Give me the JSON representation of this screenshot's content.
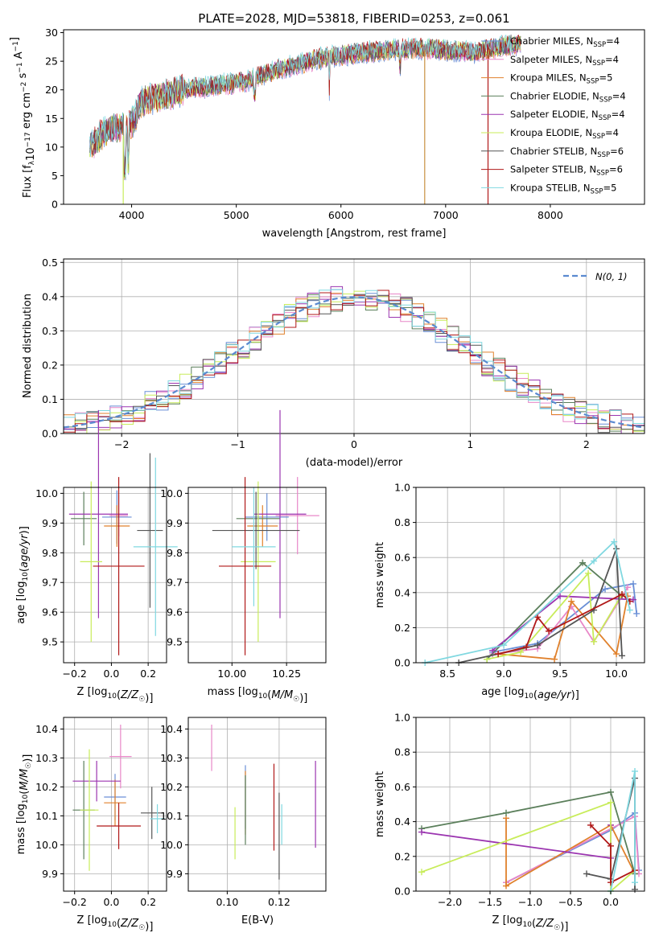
{
  "colors": [
    "#6a8fd6",
    "#e887c8",
    "#e0812c",
    "#5b7f5b",
    "#9b35b0",
    "#c8ec5a",
    "#555555",
    "#b01818",
    "#80d8e0"
  ],
  "legend_series": [
    {
      "label": "Chabrier MILES, N",
      "sub": "SSP",
      "suffix": "=4",
      "color": "#6a8fd6"
    },
    {
      "label": "Salpeter MILES, N",
      "sub": "SSP",
      "suffix": "=4",
      "color": "#e887c8"
    },
    {
      "label": "Kroupa MILES, N",
      "sub": "SSP",
      "suffix": "=5",
      "color": "#e0812c"
    },
    {
      "label": "Chabrier ELODIE, N",
      "sub": "SSP",
      "suffix": "=4",
      "color": "#5b7f5b"
    },
    {
      "label": "Salpeter ELODIE, N",
      "sub": "SSP",
      "suffix": "=4",
      "color": "#9b35b0"
    },
    {
      "label": "Kroupa ELODIE, N",
      "sub": "SSP",
      "suffix": "=4",
      "color": "#c8ec5a"
    },
    {
      "label": "Chabrier STELIB, N",
      "sub": "SSP",
      "suffix": "=6",
      "color": "#555555"
    },
    {
      "label": "Salpeter STELIB, N",
      "sub": "SSP",
      "suffix": "=6",
      "color": "#b01818"
    },
    {
      "label": "Kroupa STELIB, N",
      "sub": "SSP",
      "suffix": "=5",
      "color": "#80d8e0"
    }
  ],
  "chart_data": [
    {
      "id": "spectrum",
      "type": "line",
      "title": "PLATE=2028, MJD=53818, FIBERID=0253, z=0.061",
      "xlabel": "wavelength [Angstrom, rest frame]",
      "ylabel_parts": [
        "Flux [f",
        "λ",
        "10",
        "−17",
        " erg cm",
        "−2",
        " s",
        "−1",
        " A",
        "−1",
        "]"
      ],
      "xlim": [
        3350,
        8900
      ],
      "ylim": [
        0,
        30.5
      ],
      "xticks": [
        4000,
        5000,
        6000,
        7000,
        8000
      ],
      "yticks": [
        0,
        5,
        10,
        15,
        20,
        25,
        30
      ],
      "continuum": [
        [
          3600,
          10
        ],
        [
          3700,
          12
        ],
        [
          3800,
          13
        ],
        [
          3900,
          13.5
        ],
        [
          4000,
          14
        ],
        [
          4100,
          18
        ],
        [
          4300,
          19
        ],
        [
          4500,
          20
        ],
        [
          4700,
          20.5
        ],
        [
          4900,
          21
        ],
        [
          5100,
          21.5
        ],
        [
          5300,
          23
        ],
        [
          5500,
          24
        ],
        [
          5800,
          25.5
        ],
        [
          6000,
          26
        ],
        [
          6200,
          26.5
        ],
        [
          6500,
          27
        ],
        [
          6800,
          27.2
        ],
        [
          7000,
          27
        ],
        [
          7300,
          26.5
        ],
        [
          7500,
          27.5
        ],
        [
          7700,
          28
        ]
      ]
    },
    {
      "id": "residuals",
      "type": "line",
      "xlabel": "(data-model)/error",
      "ylabel": "Normed distribution",
      "xlim": [
        -2.5,
        2.5
      ],
      "ylim": [
        0,
        0.51
      ],
      "xticks": [
        -2,
        -1,
        0,
        1,
        2
      ],
      "yticks": [
        0,
        0.1,
        0.2,
        0.3,
        0.4,
        0.5
      ],
      "legend": "N(0, 1)",
      "bin_width": 0.1
    },
    {
      "id": "age_vs_Z",
      "type": "errorbar",
      "xlabel": "Z [log10(Z/Z☉)]",
      "ylabel": "age  [log10(age/yr)]",
      "xlim": [
        -0.26,
        0.3
      ],
      "ylim": [
        9.43,
        10.02
      ],
      "xticks": [
        -0.2,
        0.0,
        0.2
      ],
      "yticks": [
        9.5,
        9.6,
        9.7,
        9.8,
        9.9,
        10.0
      ],
      "points": [
        {
          "x": 0.03,
          "xerr": 0.08,
          "y": 9.92,
          "yerr": 0.09
        },
        {
          "x": 0.04,
          "xerr": 0.05,
          "y": 9.925,
          "yerr": 0.07
        },
        {
          "x": 0.03,
          "xerr": 0.07,
          "y": 9.89,
          "yerr": 0.07
        },
        {
          "x": -0.15,
          "xerr": 0.07,
          "y": 9.915,
          "yerr": 0.09
        },
        {
          "x": -0.07,
          "xerr": 0.16,
          "y": 9.93,
          "yerr": 0.35
        },
        {
          "x": -0.11,
          "xerr": 0.06,
          "y": 9.77,
          "yerr": 0.27
        },
        {
          "x": 0.21,
          "xerr": 0.07,
          "y": 9.875,
          "yerr": 0.26
        },
        {
          "x": 0.04,
          "xerr": 0.14,
          "y": 9.755,
          "yerr": 0.3
        },
        {
          "x": 0.24,
          "xerr": 0.12,
          "y": 9.82,
          "yerr": 0.3
        }
      ]
    },
    {
      "id": "age_vs_mass",
      "type": "errorbar",
      "xlabel": "mass [log10(M/M☉)]",
      "ylabel": "",
      "xlim": [
        9.8,
        10.43
      ],
      "ylim": [
        9.43,
        10.02
      ],
      "xticks": [
        10.0,
        10.25
      ],
      "yticks": [
        9.5,
        9.6,
        9.7,
        9.8,
        9.9,
        10.0
      ],
      "points": [
        {
          "x": 10.16,
          "xerr": 0.1,
          "y": 9.92,
          "yerr": 0.08
        },
        {
          "x": 10.3,
          "xerr": 0.1,
          "y": 9.925,
          "yerr": 0.13
        },
        {
          "x": 10.14,
          "xerr": 0.07,
          "y": 9.89,
          "yerr": 0.07
        },
        {
          "x": 10.12,
          "xerr": 0.1,
          "y": 9.915,
          "yerr": 0.09
        },
        {
          "x": 10.22,
          "xerr": 0.12,
          "y": 9.93,
          "yerr": 0.35
        },
        {
          "x": 10.12,
          "xerr": 0.08,
          "y": 9.77,
          "yerr": 0.27
        },
        {
          "x": 10.11,
          "xerr": 0.2,
          "y": 9.875,
          "yerr": 0.13
        },
        {
          "x": 10.06,
          "xerr": 0.12,
          "y": 9.755,
          "yerr": 0.3
        },
        {
          "x": 10.1,
          "xerr": 0.1,
          "y": 9.82,
          "yerr": 0.2
        }
      ]
    },
    {
      "id": "weight_vs_age",
      "type": "line",
      "xlabel": "age  [log10(age/yr)]",
      "ylabel": "mass weight",
      "xlim": [
        8.22,
        10.25
      ],
      "ylim": [
        0,
        1
      ],
      "xticks": [
        8.5,
        9.0,
        9.5,
        10.0
      ],
      "yticks": [
        0,
        0.2,
        0.4,
        0.6,
        0.8,
        1.0
      ],
      "series": [
        {
          "x": [
            8.9,
            9.3,
            9.9,
            10.15,
            10.18
          ],
          "y": [
            0.06,
            0.11,
            0.42,
            0.45,
            0.28
          ]
        },
        {
          "x": [
            8.9,
            9.3,
            9.6,
            9.8,
            10.1
          ],
          "y": [
            0.05,
            0.08,
            0.32,
            0.12,
            0.43
          ]
        },
        {
          "x": [
            8.95,
            9.45,
            9.6,
            10.0,
            10.1
          ],
          "y": [
            0.05,
            0.02,
            0.35,
            0.05,
            0.38
          ]
        },
        {
          "x": [
            8.85,
            9.7,
            10.05
          ],
          "y": [
            0.02,
            0.57,
            0.38
          ]
        },
        {
          "x": [
            8.9,
            9.5,
            10.15
          ],
          "y": [
            0.07,
            0.38,
            0.36
          ]
        },
        {
          "x": [
            8.85,
            9.15,
            9.75,
            9.8,
            10.05
          ],
          "y": [
            0.02,
            0.06,
            0.51,
            0.12,
            0.39
          ]
        },
        {
          "x": [
            8.6,
            9.3,
            9.8,
            10.0,
            10.05
          ],
          "y": [
            0.0,
            0.1,
            0.3,
            0.65,
            0.04
          ]
        },
        {
          "x": [
            8.95,
            9.2,
            9.3,
            9.4,
            10.05,
            10.12
          ],
          "y": [
            0.05,
            0.09,
            0.26,
            0.18,
            0.39,
            0.35
          ]
        },
        {
          "x": [
            8.3,
            9.0,
            9.8,
            9.98,
            10.12
          ],
          "y": [
            0.0,
            0.1,
            0.58,
            0.69,
            0.3
          ]
        }
      ]
    },
    {
      "id": "mass_vs_Z",
      "type": "errorbar",
      "xlabel": "Z [log10(Z/Z☉)]",
      "ylabel": "mass [log10(M/M☉)]",
      "xlim": [
        -0.26,
        0.3
      ],
      "ylim": [
        9.84,
        10.44
      ],
      "xticks": [
        -0.2,
        0.0,
        0.2
      ],
      "yticks": [
        9.9,
        10.0,
        10.1,
        10.2,
        10.3,
        10.4
      ],
      "points": [
        {
          "x": 0.02,
          "xerr": 0.06,
          "y": 10.165,
          "yerr": 0.08
        },
        {
          "x": 0.05,
          "xerr": 0.06,
          "y": 10.305,
          "yerr": 0.11
        },
        {
          "x": 0.02,
          "xerr": 0.06,
          "y": 10.145,
          "yerr": 0.08
        },
        {
          "x": -0.15,
          "xerr": 0.06,
          "y": 10.12,
          "yerr": 0.17
        },
        {
          "x": -0.08,
          "xerr": 0.13,
          "y": 10.22,
          "yerr": 0.07
        },
        {
          "x": -0.12,
          "xerr": 0.05,
          "y": 10.12,
          "yerr": 0.21
        },
        {
          "x": 0.22,
          "xerr": 0.06,
          "y": 10.11,
          "yerr": 0.09
        },
        {
          "x": 0.04,
          "xerr": 0.12,
          "y": 10.065,
          "yerr": 0.08
        },
        {
          "x": 0.25,
          "xerr": 0.04,
          "y": 10.09,
          "yerr": 0.05
        }
      ]
    },
    {
      "id": "mass_vs_EBV",
      "type": "errorbar",
      "xlabel": "E(B-V)",
      "ylabel": "",
      "xlim": [
        0.085,
        0.138
      ],
      "ylim": [
        9.84,
        10.44
      ],
      "xticks": [
        0.1,
        0.12
      ],
      "yticks": [
        9.9,
        10.0,
        10.1,
        10.2,
        10.3,
        10.4
      ],
      "points": [
        {
          "x": 0.107,
          "xerr": 0,
          "y": 10.165,
          "yerr": 0.11
        },
        {
          "x": 0.094,
          "xerr": 0,
          "y": 10.335,
          "yerr": 0.08
        },
        {
          "x": 0.107,
          "xerr": 0,
          "y": 10.145,
          "yerr": 0.11
        },
        {
          "x": 0.107,
          "xerr": 0,
          "y": 10.12,
          "yerr": 0.12
        },
        {
          "x": 0.134,
          "xerr": 0,
          "y": 10.14,
          "yerr": 0.15
        },
        {
          "x": 0.103,
          "xerr": 0,
          "y": 10.04,
          "yerr": 0.09
        },
        {
          "x": 0.12,
          "xerr": 0,
          "y": 10.03,
          "yerr": 0.15
        },
        {
          "x": 0.118,
          "xerr": 0,
          "y": 10.13,
          "yerr": 0.15
        },
        {
          "x": 0.121,
          "xerr": 0,
          "y": 10.07,
          "yerr": 0.07
        }
      ]
    },
    {
      "id": "weight_vs_Z",
      "type": "line",
      "xlabel": "Z [log10(Z/Z☉)]",
      "ylabel": "mass weight",
      "xlim": [
        -2.42,
        0.42
      ],
      "ylim": [
        0,
        1
      ],
      "xticks": [
        -2.0,
        -1.5,
        -1.0,
        -0.5,
        0.0
      ],
      "yticks": [
        0,
        0.2,
        0.4,
        0.6,
        0.8,
        1.0
      ],
      "series": [
        {
          "x": [
            -1.3,
            0.0,
            0.3,
            0.35
          ],
          "y": [
            0.05,
            0.35,
            0.45,
            0.12
          ]
        },
        {
          "x": [
            -1.3,
            0.3,
            0.35
          ],
          "y": [
            0.05,
            0.43,
            0.1
          ]
        },
        {
          "x": [
            -1.3,
            -1.3,
            0.0,
            0.3
          ],
          "y": [
            0.42,
            0.03,
            0.38,
            0.1
          ]
        },
        {
          "x": [
            -2.35,
            -1.3,
            0.0,
            0.3
          ],
          "y": [
            0.36,
            0.45,
            0.57,
            0.1
          ]
        },
        {
          "x": [
            -2.35,
            0.0,
            0.0
          ],
          "y": [
            0.34,
            0.19,
            0.38
          ]
        },
        {
          "x": [
            -2.35,
            -0.0,
            0.0,
            0.3
          ],
          "y": [
            0.11,
            0.51,
            0.0,
            0.12
          ]
        },
        {
          "x": [
            -0.3,
            0.0,
            0.3,
            0.3
          ],
          "y": [
            0.1,
            0.07,
            0.65,
            0.01
          ]
        },
        {
          "x": [
            -0.25,
            0.0,
            0.0,
            0.3
          ],
          "y": [
            0.38,
            0.26,
            0.05,
            0.12
          ]
        },
        {
          "x": [
            0.0,
            0.3,
            0.3
          ],
          "y": [
            0.0,
            0.69,
            0.05
          ]
        }
      ]
    }
  ]
}
